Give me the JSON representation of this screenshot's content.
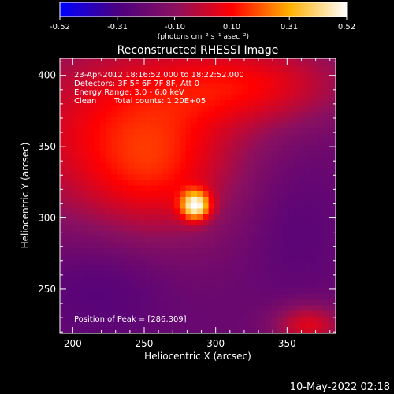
{
  "colorbar": {
    "ticks": [
      "-0.52",
      "-0.31",
      "-0.10",
      "0.10",
      "0.31",
      "0.52"
    ],
    "units": "(photons cm⁻² s⁻¹ asec⁻²)"
  },
  "title": "Reconstructed RHESSI Image",
  "info": {
    "time_range": "23-Apr-2012 18:16:52.000 to 18:22:52.000",
    "detectors": "Detectors: 3F 5F 6F 7F 8F, Att 0",
    "energy": "Energy Range: 3.0 - 6.0 keV",
    "method": "Clean",
    "total_counts": "Total counts: 1.20E+05",
    "peak": "Position of Peak = [286,309]"
  },
  "footer_date": "10-May-2022 02:18",
  "chart_data": {
    "type": "heatmap",
    "title": "Reconstructed RHESSI Image",
    "xlabel": "Heliocentric X (arcsec)",
    "ylabel": "Heliocentric Y (arcsec)",
    "xlim": [
      191,
      384
    ],
    "ylim": [
      219,
      412
    ],
    "x_ticks": [
      200,
      250,
      300,
      350
    ],
    "y_ticks": [
      250,
      300,
      350,
      400
    ],
    "colorbar_range": [
      -0.52,
      0.52
    ],
    "colormap": [
      "#0000ff",
      "#4a0080",
      "#8a1060",
      "#ff0000",
      "#ffb000",
      "#ffffff"
    ],
    "peak_position": [
      286,
      309
    ],
    "peak_value": 0.52,
    "grid": false
  }
}
